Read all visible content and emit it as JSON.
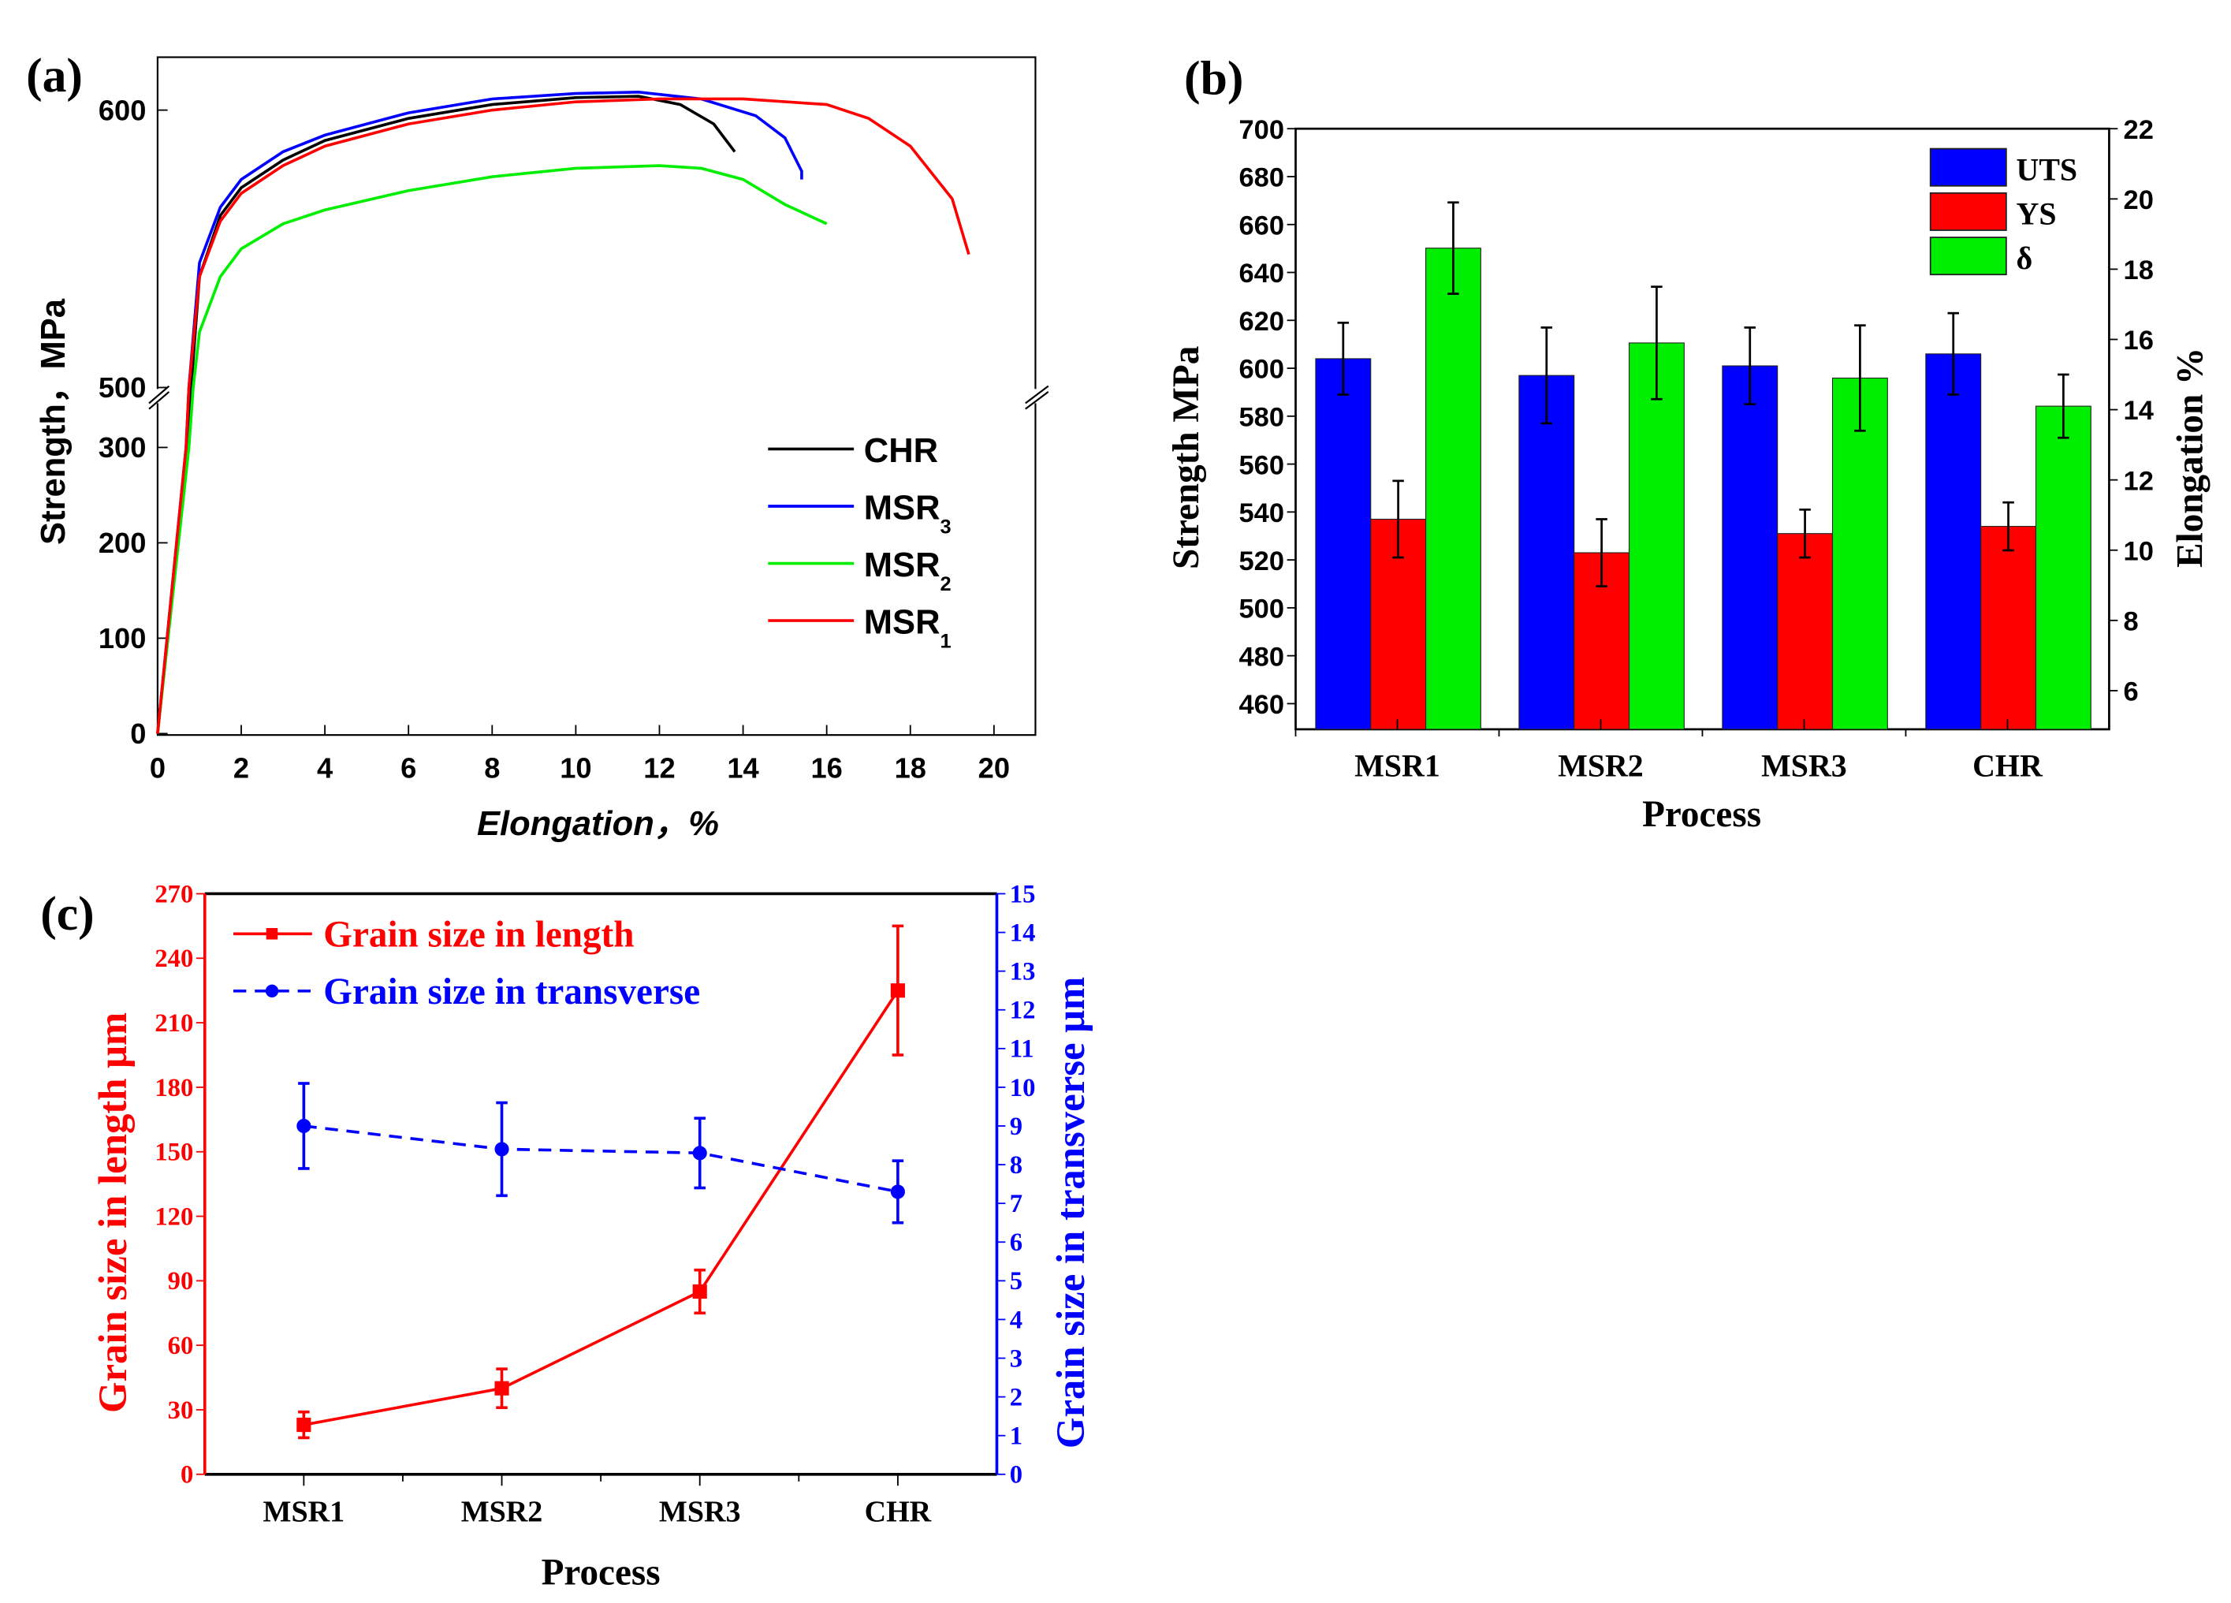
{
  "chart_data": [
    {
      "panel_label": "(a)",
      "type": "line",
      "xlabel": "Elongation，%",
      "ylabel": "Strength，MPa",
      "xlim": [
        0,
        21
      ],
      "x_ticks": [
        "0",
        "2",
        "4",
        "6",
        "8",
        "10",
        "12",
        "14",
        "16",
        "18",
        "20"
      ],
      "y_ticks_lower": [
        "0",
        "100",
        "200",
        "300"
      ],
      "y_ticks_upper": [
        "500",
        "600"
      ],
      "y_axis_break": [
        300,
        500
      ],
      "legend_position": "bottom-right",
      "series": [
        {
          "name": "CHR",
          "sub": "",
          "color": "#000000",
          "points": [
            [
              0,
              0
            ],
            [
              0.7,
              300
            ],
            [
              0.8,
              500
            ],
            [
              1,
              540
            ],
            [
              1.5,
              562
            ],
            [
              2,
              572
            ],
            [
              3,
              582
            ],
            [
              4,
              589
            ],
            [
              6,
              597
            ],
            [
              8,
              602
            ],
            [
              10,
              604.5
            ],
            [
              11.5,
              605
            ],
            [
              12.5,
              602
            ],
            [
              13.3,
              595
            ],
            [
              13.8,
              585
            ]
          ]
        },
        {
          "name": "MSR",
          "sub": "3",
          "color": "#0000ff",
          "points": [
            [
              0,
              0
            ],
            [
              0.68,
              300
            ],
            [
              0.75,
              500
            ],
            [
              1,
              545
            ],
            [
              1.5,
              565
            ],
            [
              2,
              575
            ],
            [
              3,
              585
            ],
            [
              4,
              591
            ],
            [
              6,
              599
            ],
            [
              8,
              604
            ],
            [
              10,
              606
            ],
            [
              11.5,
              606.5
            ],
            [
              13,
              604
            ],
            [
              14.3,
              598
            ],
            [
              15,
              590
            ],
            [
              15.4,
              578
            ],
            [
              15.4,
              575
            ]
          ]
        },
        {
          "name": "MSR",
          "sub": "2",
          "color": "#00ee00",
          "points": [
            [
              0,
              0
            ],
            [
              0.75,
              300
            ],
            [
              0.85,
              500
            ],
            [
              1,
              520
            ],
            [
              1.5,
              540
            ],
            [
              2,
              550
            ],
            [
              3,
              559
            ],
            [
              4,
              564
            ],
            [
              6,
              571
            ],
            [
              8,
              576
            ],
            [
              10,
              579
            ],
            [
              12,
              580
            ],
            [
              13,
              579
            ],
            [
              14,
              575
            ],
            [
              15,
              566
            ],
            [
              16,
              559
            ]
          ]
        },
        {
          "name": "MSR",
          "sub": "1",
          "color": "#ff0000",
          "points": [
            [
              0,
              0
            ],
            [
              0.68,
              300
            ],
            [
              0.75,
              500
            ],
            [
              1,
              540
            ],
            [
              1.5,
              560
            ],
            [
              2,
              570
            ],
            [
              3,
              580
            ],
            [
              4,
              587
            ],
            [
              6,
              595
            ],
            [
              8,
              600
            ],
            [
              10,
              603
            ],
            [
              12,
              604
            ],
            [
              14,
              604
            ],
            [
              16,
              602
            ],
            [
              17,
              597
            ],
            [
              18,
              587
            ],
            [
              19,
              568
            ],
            [
              19.4,
              548
            ]
          ]
        }
      ]
    },
    {
      "panel_label": "(b)",
      "type": "bar",
      "xlabel": "Process",
      "ylabel": "Strength MPa",
      "ylabel_right": "Elongation %",
      "categories": [
        "MSR1",
        "MSR2",
        "MSR3",
        "CHR"
      ],
      "ylim": [
        449.3,
        700
      ],
      "ylim_right": [
        4.9,
        22
      ],
      "y_ticks": [
        "460",
        "480",
        "500",
        "520",
        "540",
        "560",
        "580",
        "600",
        "620",
        "640",
        "660",
        "680",
        "700"
      ],
      "y_ticks_right": [
        "6",
        "8",
        "10",
        "12",
        "14",
        "16",
        "18",
        "20",
        "22"
      ],
      "legend_position": "top-right",
      "series": [
        {
          "name": "UTS",
          "axis": "left",
          "color": "#0000ff",
          "values": [
            604,
            597,
            601,
            606
          ],
          "errors": [
            15,
            20,
            16,
            17
          ]
        },
        {
          "name": "YS",
          "axis": "left",
          "color": "#ff0000",
          "values": [
            537,
            523,
            531,
            534
          ],
          "errors": [
            16,
            14,
            10,
            10
          ]
        },
        {
          "name": "δ",
          "axis": "right",
          "color": "#00ee00",
          "values": [
            18.6,
            15.9,
            14.9,
            14.1
          ],
          "errors": [
            1.3,
            1.6,
            1.5,
            0.9
          ]
        }
      ]
    },
    {
      "panel_label": "(c)",
      "type": "line",
      "xlabel": "Process",
      "ylabel": "Grain size in length μm",
      "ylabel_right": "Grain size in transverse μm",
      "categories": [
        "MSR1",
        "MSR2",
        "MSR3",
        "CHR"
      ],
      "ylim": [
        0,
        270
      ],
      "ylim_right": [
        0,
        15
      ],
      "y_ticks": [
        "0",
        "30",
        "60",
        "90",
        "120",
        "150",
        "180",
        "210",
        "240",
        "270"
      ],
      "y_ticks_right": [
        "0",
        "1",
        "2",
        "3",
        "4",
        "5",
        "6",
        "7",
        "8",
        "9",
        "10",
        "11",
        "12",
        "13",
        "14",
        "15"
      ],
      "legend_position": "top-left",
      "series": [
        {
          "name": "Grain size in length",
          "axis": "left",
          "color": "#ff0000",
          "marker": "square",
          "dash": false,
          "values": [
            23,
            40,
            85,
            225
          ],
          "errors": [
            6,
            9,
            10,
            30
          ]
        },
        {
          "name": "Grain size in transverse",
          "axis": "right",
          "color": "#0000ff",
          "marker": "circle",
          "dash": true,
          "values": [
            9.0,
            8.4,
            8.3,
            7.3
          ],
          "errors": [
            1.1,
            1.2,
            0.9,
            0.8
          ]
        }
      ]
    }
  ]
}
